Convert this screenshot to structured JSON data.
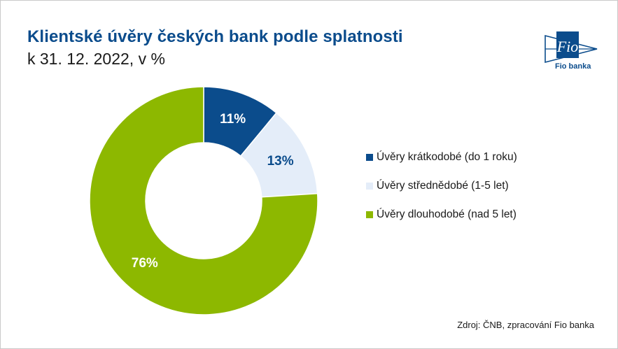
{
  "header": {
    "title": "Klientské úvěry českých bank podle splatnosti",
    "subtitle": "k 31. 12. 2022, v %"
  },
  "logo": {
    "mark_text": "Fio",
    "caption": "Fio banka",
    "color": "#0b4c8c"
  },
  "chart_data": {
    "type": "pie",
    "style": "donut",
    "categories": [
      "Úvěry krátkodobé (do 1 roku)",
      "Úvěry střednědobé (1-5 let)",
      "Úvěry dlouhodobé (nad 5 let)"
    ],
    "values": [
      11,
      13,
      76
    ],
    "data_labels": [
      "11%",
      "13%",
      "76%"
    ],
    "colors": [
      "#0b4c8c",
      "#e4edf9",
      "#8db800"
    ],
    "label_colors": [
      "#ffffff",
      "#0b4c8c",
      "#ffffff"
    ],
    "legend_position": "right"
  },
  "footer": {
    "source": "Zdroj: ČNB, zpracování Fio banka"
  }
}
